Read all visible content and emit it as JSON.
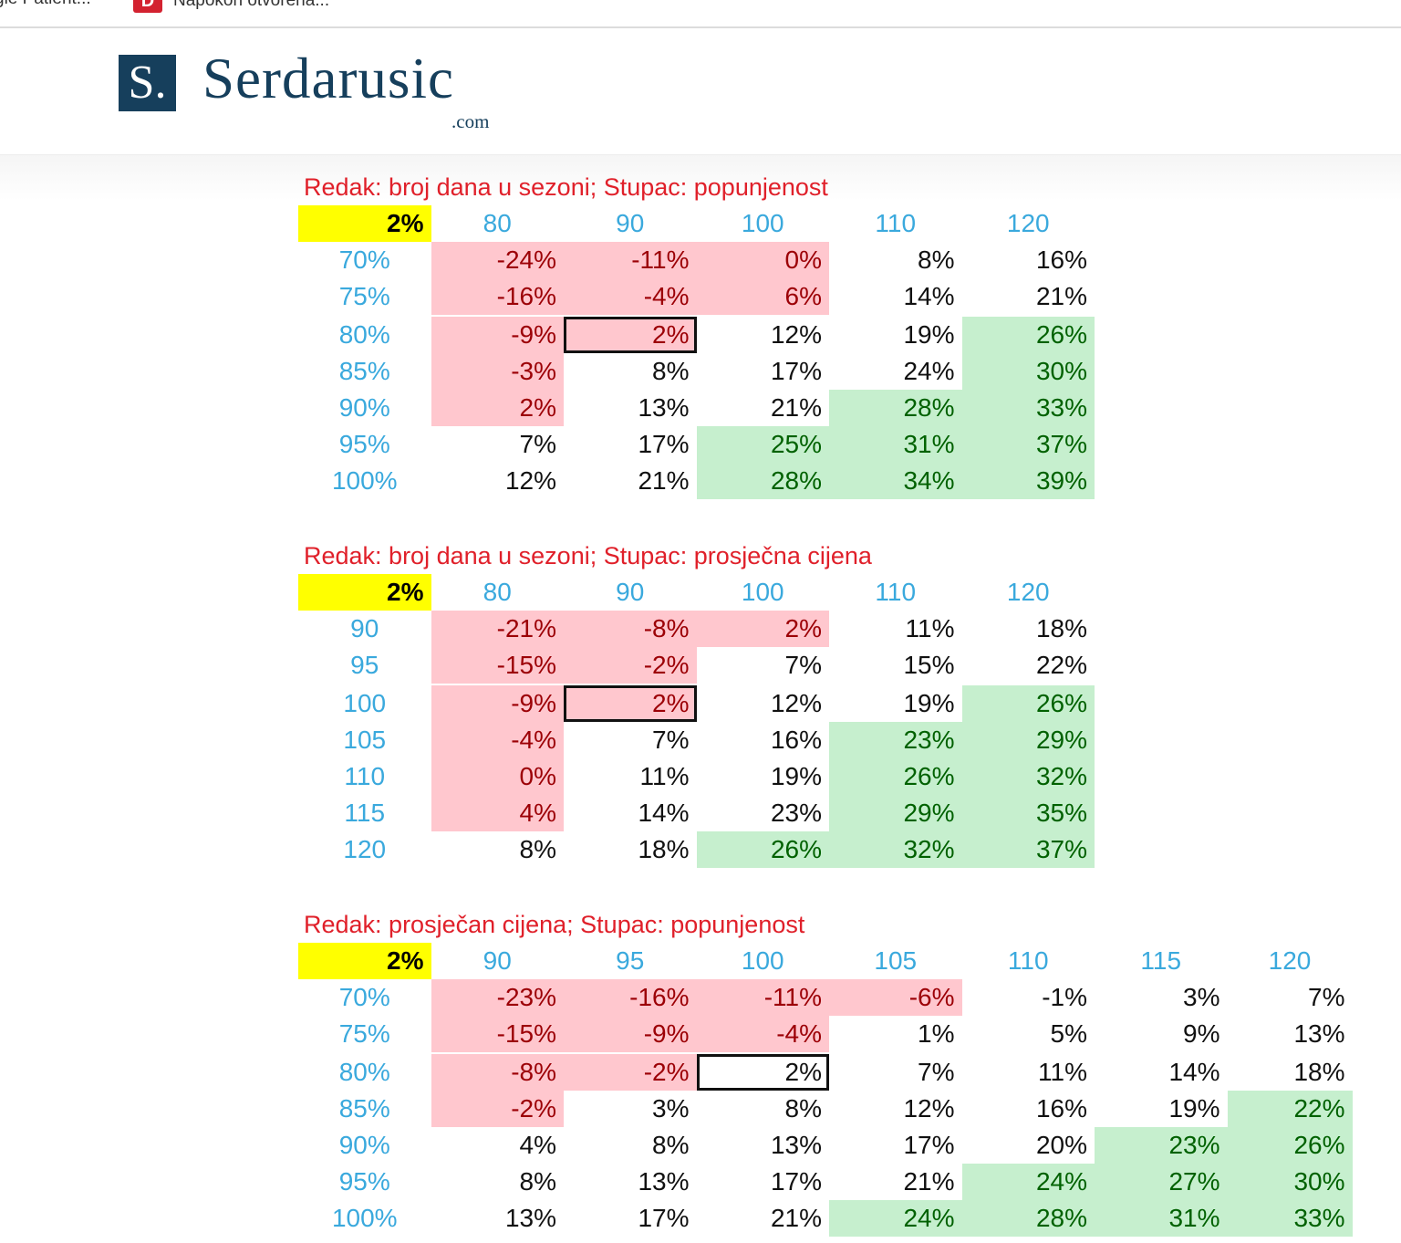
{
  "bookmarks": [
    {
      "label": "gle Patient..."
    },
    {
      "label": "Napokon otvorena..."
    }
  ],
  "site": {
    "logo_mark": "S.",
    "name": "Serdarusic",
    "domain": ".com"
  },
  "colors": {
    "negative_bg": "#ffc7ce",
    "negative_text": "#9c0006",
    "positive_bg": "#c6efce",
    "positive_text": "#006100",
    "header_text": "#3aa9dd",
    "corner_bg": "#ffff00",
    "title_text": "#e0202a"
  },
  "tables": [
    {
      "title": "Redak: broj dana u sezoni; Stupac: popunjenost",
      "corner": "2%",
      "columns": [
        "80",
        "90",
        "100",
        "110",
        "120"
      ],
      "selected": [
        2,
        1
      ],
      "rows": [
        {
          "label": "70%",
          "values": [
            "-24%",
            "-11%",
            "0%",
            "8%",
            "16%"
          ],
          "status": [
            "neg",
            "neg",
            "neg",
            "neu",
            "neu"
          ]
        },
        {
          "label": "75%",
          "values": [
            "-16%",
            "-4%",
            "6%",
            "14%",
            "21%"
          ],
          "status": [
            "neg",
            "neg",
            "neg",
            "neu",
            "neu"
          ]
        },
        {
          "label": "80%",
          "values": [
            "-9%",
            "2%",
            "12%",
            "19%",
            "26%"
          ],
          "status": [
            "neg",
            "neg",
            "neu",
            "neu",
            "pos"
          ]
        },
        {
          "label": "85%",
          "values": [
            "-3%",
            "8%",
            "17%",
            "24%",
            "30%"
          ],
          "status": [
            "neg",
            "neu",
            "neu",
            "neu",
            "pos"
          ]
        },
        {
          "label": "90%",
          "values": [
            "2%",
            "13%",
            "21%",
            "28%",
            "33%"
          ],
          "status": [
            "neg",
            "neu",
            "neu",
            "pos",
            "pos"
          ]
        },
        {
          "label": "95%",
          "values": [
            "7%",
            "17%",
            "25%",
            "31%",
            "37%"
          ],
          "status": [
            "neu",
            "neu",
            "pos",
            "pos",
            "pos"
          ]
        },
        {
          "label": "100%",
          "values": [
            "12%",
            "21%",
            "28%",
            "34%",
            "39%"
          ],
          "status": [
            "neu",
            "neu",
            "pos",
            "pos",
            "pos"
          ]
        }
      ]
    },
    {
      "title": "Redak: broj dana u sezoni; Stupac: prosječna cijena",
      "corner": "2%",
      "columns": [
        "80",
        "90",
        "100",
        "110",
        "120"
      ],
      "selected": [
        2,
        1
      ],
      "rows": [
        {
          "label": "90",
          "values": [
            "-21%",
            "-8%",
            "2%",
            "11%",
            "18%"
          ],
          "status": [
            "neg",
            "neg",
            "neg",
            "neu",
            "neu"
          ]
        },
        {
          "label": "95",
          "values": [
            "-15%",
            "-2%",
            "7%",
            "15%",
            "22%"
          ],
          "status": [
            "neg",
            "neg",
            "neu",
            "neu",
            "neu"
          ]
        },
        {
          "label": "100",
          "values": [
            "-9%",
            "2%",
            "12%",
            "19%",
            "26%"
          ],
          "status": [
            "neg",
            "neg",
            "neu",
            "neu",
            "pos"
          ]
        },
        {
          "label": "105",
          "values": [
            "-4%",
            "7%",
            "16%",
            "23%",
            "29%"
          ],
          "status": [
            "neg",
            "neu",
            "neu",
            "pos",
            "pos"
          ]
        },
        {
          "label": "110",
          "values": [
            "0%",
            "11%",
            "19%",
            "26%",
            "32%"
          ],
          "status": [
            "neg",
            "neu",
            "neu",
            "pos",
            "pos"
          ]
        },
        {
          "label": "115",
          "values": [
            "4%",
            "14%",
            "23%",
            "29%",
            "35%"
          ],
          "status": [
            "neg",
            "neu",
            "neu",
            "pos",
            "pos"
          ]
        },
        {
          "label": "120",
          "values": [
            "8%",
            "18%",
            "26%",
            "32%",
            "37%"
          ],
          "status": [
            "neu",
            "neu",
            "pos",
            "pos",
            "pos"
          ]
        }
      ]
    },
    {
      "title": "Redak: prosječan cijena; Stupac: popunjenost",
      "corner": "2%",
      "columns": [
        "90",
        "95",
        "100",
        "105",
        "110",
        "115",
        "120"
      ],
      "selected": [
        2,
        2
      ],
      "rows": [
        {
          "label": "70%",
          "values": [
            "-23%",
            "-16%",
            "-11%",
            "-6%",
            "-1%",
            "3%",
            "7%"
          ],
          "status": [
            "neg",
            "neg",
            "neg",
            "neg",
            "neu",
            "neu",
            "neu"
          ]
        },
        {
          "label": "75%",
          "values": [
            "-15%",
            "-9%",
            "-4%",
            "1%",
            "5%",
            "9%",
            "13%"
          ],
          "status": [
            "neg",
            "neg",
            "neg",
            "neu",
            "neu",
            "neu",
            "neu"
          ]
        },
        {
          "label": "80%",
          "values": [
            "-8%",
            "-2%",
            "2%",
            "7%",
            "11%",
            "14%",
            "18%"
          ],
          "status": [
            "neg",
            "neg",
            "neu",
            "neu",
            "neu",
            "neu",
            "neu"
          ]
        },
        {
          "label": "85%",
          "values": [
            "-2%",
            "3%",
            "8%",
            "12%",
            "16%",
            "19%",
            "22%"
          ],
          "status": [
            "neg",
            "neu",
            "neu",
            "neu",
            "neu",
            "neu",
            "pos"
          ]
        },
        {
          "label": "90%",
          "values": [
            "4%",
            "8%",
            "13%",
            "17%",
            "20%",
            "23%",
            "26%"
          ],
          "status": [
            "neu",
            "neu",
            "neu",
            "neu",
            "neu",
            "pos",
            "pos"
          ]
        },
        {
          "label": "95%",
          "values": [
            "8%",
            "13%",
            "17%",
            "21%",
            "24%",
            "27%",
            "30%"
          ],
          "status": [
            "neu",
            "neu",
            "neu",
            "neu",
            "pos",
            "pos",
            "pos"
          ]
        },
        {
          "label": "100%",
          "values": [
            "13%",
            "17%",
            "21%",
            "24%",
            "28%",
            "31%",
            "33%"
          ],
          "status": [
            "neu",
            "neu",
            "neu",
            "pos",
            "pos",
            "pos",
            "pos"
          ]
        }
      ]
    }
  ]
}
